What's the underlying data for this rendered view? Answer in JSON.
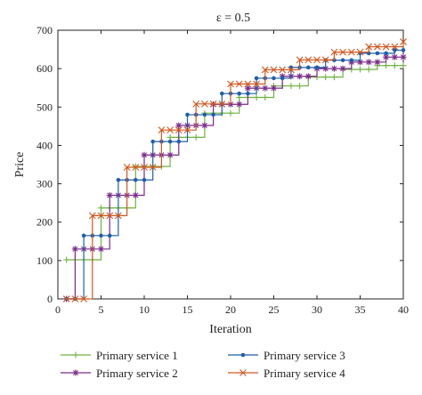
{
  "chart_data": {
    "type": "line",
    "title": "ε = 0.5",
    "xlabel": "Iteration",
    "ylabel": "Price",
    "xlim": [
      0,
      40
    ],
    "ylim": [
      0,
      700
    ],
    "xticks": [
      0,
      5,
      10,
      15,
      20,
      25,
      30,
      35,
      40
    ],
    "yticks": [
      0,
      100,
      200,
      300,
      400,
      500,
      600,
      700
    ],
    "grid": false,
    "step": true,
    "legend_position": "bottom",
    "x": [
      1,
      2,
      3,
      4,
      5,
      6,
      7,
      8,
      9,
      10,
      11,
      12,
      13,
      14,
      15,
      16,
      17,
      18,
      19,
      20,
      21,
      22,
      23,
      24,
      25,
      26,
      27,
      28,
      29,
      30,
      31,
      32,
      33,
      34,
      35,
      36,
      37,
      38,
      39,
      40
    ],
    "series": [
      {
        "name": "Primary service 1",
        "color": "#6db33f",
        "marker": "plus",
        "values": [
          102,
          102,
          102,
          102,
          237,
          237,
          237,
          237,
          345,
          345,
          345,
          345,
          421,
          421,
          421,
          421,
          484,
          484,
          484,
          484,
          525,
          525,
          525,
          525,
          555,
          555,
          555,
          555,
          578,
          578,
          578,
          578,
          598,
          598,
          598,
          598,
          608,
          608,
          608,
          608
        ]
      },
      {
        "name": "Primary service 2",
        "color": "#7a2a8c",
        "marker": "star",
        "values": [
          0,
          130,
          130,
          130,
          130,
          270,
          270,
          270,
          270,
          375,
          375,
          375,
          375,
          452,
          452,
          452,
          452,
          507,
          507,
          507,
          507,
          549,
          549,
          549,
          549,
          580,
          580,
          580,
          580,
          600,
          600,
          600,
          600,
          617,
          617,
          617,
          617,
          630,
          630,
          630
        ]
      },
      {
        "name": "Primary service 3",
        "color": "#1f5fa8",
        "marker": "dot",
        "values": [
          0,
          0,
          165,
          165,
          165,
          165,
          310,
          310,
          310,
          310,
          410,
          410,
          410,
          410,
          480,
          480,
          480,
          480,
          535,
          535,
          535,
          535,
          575,
          575,
          575,
          575,
          603,
          603,
          603,
          603,
          622,
          622,
          622,
          622,
          640,
          640,
          640,
          640,
          648,
          648
        ]
      },
      {
        "name": "Primary service 4",
        "color": "#d2571e",
        "marker": "x",
        "values": [
          0,
          0,
          0,
          217,
          217,
          217,
          217,
          343,
          343,
          343,
          343,
          440,
          440,
          440,
          440,
          508,
          508,
          508,
          508,
          560,
          560,
          560,
          560,
          597,
          597,
          597,
          597,
          623,
          623,
          623,
          623,
          643,
          643,
          643,
          643,
          657,
          657,
          657,
          657,
          670
        ]
      }
    ]
  }
}
